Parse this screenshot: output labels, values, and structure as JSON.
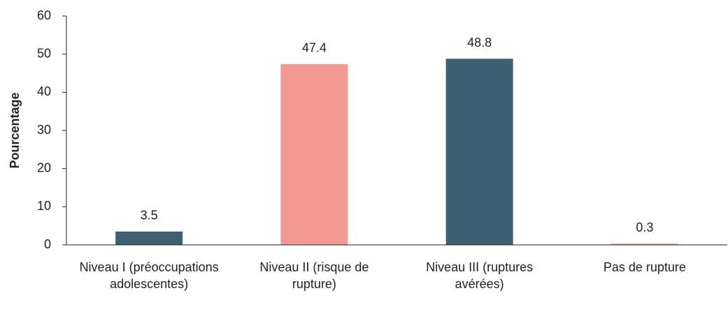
{
  "chart_data": {
    "type": "bar",
    "y_label": "Pourcentage",
    "categories": [
      "Niveau I (préoccupations adolescentes)",
      "Niveau II (risque de rupture)",
      "Niveau III (ruptures avérées)",
      "Pas de rupture"
    ],
    "values": [
      3.5,
      47.4,
      48.8,
      0.3
    ],
    "colors": [
      "#3f6272",
      "#f09a91",
      "#3f6272",
      "#f09a91"
    ],
    "ylim": [
      0,
      60
    ],
    "yticks": [
      0,
      10,
      20,
      30,
      40,
      50,
      60
    ],
    "grid": false
  }
}
